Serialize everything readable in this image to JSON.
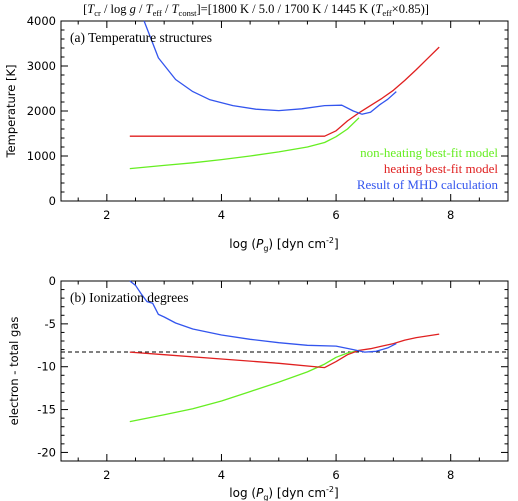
{
  "figure": {
    "title_pre": "[",
    "title_tcr": "T",
    "title_tcr_sub": "cr",
    "title_sep1": " / log ",
    "title_g": "g",
    "title_sep2": " / ",
    "title_teff": "T",
    "title_teff_sub": "eff",
    "title_sep3": " / ",
    "title_tconst": "T",
    "title_tconst_sub": "const",
    "title_values": "]=[1800 K / 5.0 / 1700 K / 1445 K (",
    "title_teff2": "T",
    "title_teff2_sub": "eff",
    "title_end": "×0.85)]"
  },
  "chart_data": [
    {
      "type": "line",
      "panel_label": "(a) Temperature structures",
      "xlabel_pre": "log (",
      "xlabel_P": "P",
      "xlabel_sub": "g",
      "xlabel_post": ") [dyn cm",
      "xlabel_sup": "-2",
      "xlabel_end": "]",
      "ylabel": "Temperature [K]",
      "xlim": [
        1.2,
        9.0
      ],
      "ylim": [
        0,
        4000
      ],
      "xticks": [
        2,
        4,
        6,
        8
      ],
      "yticks": [
        0,
        1000,
        2000,
        3000,
        4000
      ],
      "legend_placement": "bottom-right",
      "series": [
        {
          "name": "non-heating best-fit model",
          "color": "#66ee22",
          "x": [
            2.4,
            3.0,
            3.5,
            4.0,
            4.5,
            5.0,
            5.5,
            5.8,
            6.0,
            6.2,
            6.4
          ],
          "y": [
            720,
            790,
            850,
            920,
            1000,
            1090,
            1200,
            1300,
            1430,
            1600,
            1850
          ]
        },
        {
          "name": "heating best-fit model",
          "color": "#e02020",
          "x": [
            2.4,
            3.0,
            4.0,
            5.0,
            5.8,
            6.0,
            6.2,
            6.4,
            6.6,
            6.8,
            7.0,
            7.2,
            7.4,
            7.6,
            7.8
          ],
          "y": [
            1440,
            1440,
            1440,
            1440,
            1440,
            1560,
            1780,
            1960,
            2120,
            2280,
            2460,
            2680,
            2920,
            3170,
            3420
          ]
        },
        {
          "name": "Result of MHD calculation",
          "color": "#3355ee",
          "x": [
            2.65,
            2.9,
            3.2,
            3.5,
            3.8,
            4.2,
            4.6,
            5.0,
            5.4,
            5.8,
            6.1,
            6.3,
            6.45,
            6.6,
            6.75,
            6.9,
            7.05
          ],
          "y": [
            4000,
            3180,
            2700,
            2430,
            2250,
            2120,
            2040,
            2010,
            2050,
            2120,
            2130,
            2000,
            1930,
            1970,
            2130,
            2260,
            2430
          ]
        }
      ]
    },
    {
      "type": "line",
      "panel_label": "(b) Ionization degrees",
      "xlabel_pre": "log (",
      "xlabel_P": "P",
      "xlabel_sub": "g",
      "xlabel_post": ") [dyn cm",
      "xlabel_sup": "-2",
      "xlabel_end": "]",
      "ylabel": "electron - total gas",
      "xlim": [
        1.2,
        9.0
      ],
      "ylim": [
        -21,
        0
      ],
      "xticks": [
        2,
        4,
        6,
        8
      ],
      "yticks": [
        0,
        -5,
        -10,
        -15,
        -20
      ],
      "reference_line_y": -8,
      "series": [
        {
          "name": "",
          "color": "#66ee22",
          "x": [
            2.4,
            3.0,
            3.5,
            4.0,
            4.5,
            5.0,
            5.5,
            5.8,
            6.0,
            6.2,
            6.4
          ],
          "y": [
            -16.4,
            -15.6,
            -14.9,
            -14.0,
            -12.9,
            -11.8,
            -10.6,
            -9.7,
            -8.9,
            -8.4,
            -8.1
          ]
        },
        {
          "name": "",
          "color": "#e02020",
          "x": [
            2.4,
            3.0,
            4.0,
            5.0,
            5.8,
            6.0,
            6.2,
            6.4,
            6.6,
            6.8,
            7.0,
            7.2,
            7.4,
            7.6,
            7.8
          ],
          "y": [
            -8.3,
            -8.6,
            -9.1,
            -9.6,
            -10.1,
            -9.4,
            -8.6,
            -8.1,
            -7.9,
            -7.6,
            -7.3,
            -6.9,
            -6.6,
            -6.4,
            -6.2
          ]
        },
        {
          "name": "",
          "color": "#3355ee",
          "x": [
            2.4,
            2.5,
            2.6,
            2.7,
            2.8,
            2.9,
            3.0,
            3.2,
            3.5,
            4.0,
            4.5,
            5.0,
            5.5,
            6.0,
            6.3,
            6.5,
            6.7,
            6.9,
            7.05
          ],
          "y": [
            0,
            -0.5,
            -1.5,
            -2.4,
            -2.6,
            -3.9,
            -4.2,
            -4.9,
            -5.6,
            -6.3,
            -6.8,
            -7.2,
            -7.5,
            -7.6,
            -8.0,
            -8.3,
            -8.2,
            -7.8,
            -7.3
          ]
        }
      ]
    }
  ]
}
